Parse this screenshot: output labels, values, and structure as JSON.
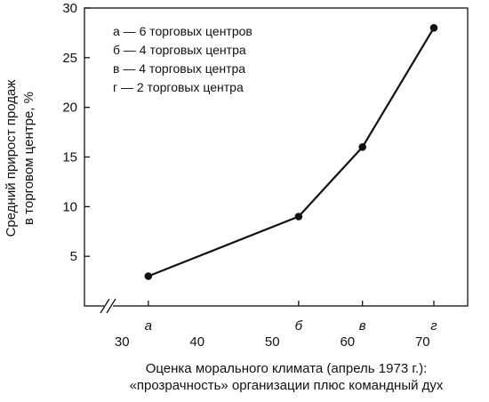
{
  "chart_data": {
    "type": "line",
    "title": "",
    "xlabel": [
      "Оценка морального климата (апрель 1973 г.):",
      "«прозрачность» организации плюс командный дух"
    ],
    "ylabel": [
      "Средний прирост продаж",
      "в торговом центре, %"
    ],
    "ylim": [
      0,
      30
    ],
    "y_ticks": [
      5,
      10,
      15,
      20,
      25,
      30
    ],
    "xlim": [
      25,
      76
    ],
    "x_ticks": [
      30,
      40,
      50,
      60,
      70
    ],
    "axis_break": true,
    "grid": false,
    "legend_placement": "top-left",
    "series": [
      {
        "points": [
          {
            "label": "а",
            "x": 33.5,
            "y": 3
          },
          {
            "label": "б",
            "x": 53.5,
            "y": 9
          },
          {
            "label": "в",
            "x": 62,
            "y": 16
          },
          {
            "label": "г",
            "x": 71.5,
            "y": 28
          }
        ]
      }
    ],
    "legend": [
      "а — 6 торговых центров",
      "б — 4 торговых центра",
      "в — 4 торговых центра",
      "г — 2 торговых центра"
    ],
    "color": "#111111"
  }
}
